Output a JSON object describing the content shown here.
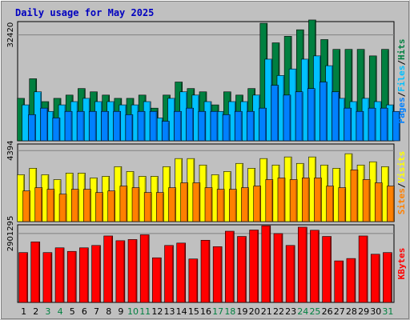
{
  "chart_data": {
    "type": "bar",
    "title": "Daily usage for May 2025",
    "categories": [
      "1",
      "2",
      "3",
      "4",
      "5",
      "6",
      "7",
      "8",
      "9",
      "10",
      "11",
      "12",
      "13",
      "14",
      "15",
      "16",
      "17",
      "18",
      "19",
      "20",
      "21",
      "22",
      "23",
      "24",
      "25",
      "26",
      "27",
      "28",
      "29",
      "30",
      "31"
    ],
    "weekend_days": [
      3,
      4,
      10,
      11,
      17,
      18,
      24,
      25,
      31
    ],
    "panels": [
      {
        "id": "hits-files-pages",
        "y_tick": "32420",
        "ylim": [
          0,
          36500
        ],
        "right_label": [
          "Pages",
          "Files",
          "Hits"
        ],
        "series": [
          {
            "name": "Hits",
            "color": "#008040",
            "values": [
              13000,
              19000,
              12000,
              13000,
              14000,
              16000,
              15000,
              14000,
              13000,
              13000,
              14000,
              10000,
              14000,
              18000,
              16000,
              15000,
              11000,
              15000,
              14000,
              16000,
              36000,
              30000,
              32000,
              34000,
              37000,
              31000,
              28000,
              28000,
              28000,
              26000,
              28000
            ]
          },
          {
            "name": "Files",
            "color": "#00c0ff",
            "values": [
              11000,
              15000,
              9000,
              11000,
              12000,
              13000,
              12000,
              12000,
              11000,
              11000,
              12000,
              7000,
              13000,
              15000,
              14000,
              12000,
              9000,
              12000,
              12000,
              14000,
              25000,
              20000,
              22000,
              25000,
              26000,
              23000,
              13000,
              12000,
              13000,
              12000,
              11000
            ]
          },
          {
            "name": "Pages",
            "color": "#0080ff",
            "values": [
              8000,
              10000,
              7000,
              9000,
              9000,
              9000,
              9000,
              9000,
              8000,
              9000,
              9000,
              6000,
              9000,
              10000,
              9000,
              9000,
              8000,
              9000,
              9000,
              10000,
              17000,
              14000,
              15000,
              16000,
              18000,
              15000,
              10000,
              9000,
              10000,
              10000,
              9000
            ]
          }
        ]
      },
      {
        "id": "visits-sites",
        "y_tick": "4394",
        "ylim": [
          0,
          4800
        ],
        "right_label": [
          "Sites",
          "Visits"
        ],
        "series": [
          {
            "name": "Visits",
            "color": "#ffff00",
            "values": [
              2900,
              3300,
              2900,
              2600,
              3000,
              3000,
              2700,
              2800,
              3400,
              3100,
              2800,
              2800,
              3400,
              3900,
              3900,
              3500,
              2900,
              3100,
              3600,
              3300,
              3900,
              3500,
              4000,
              3600,
              4000,
              3500,
              3300,
              4200,
              3500,
              3700,
              3400
            ]
          },
          {
            "name": "Sites",
            "color": "#ff8000",
            "values": [
              1900,
              2100,
              2000,
              1700,
              2000,
              2000,
              1800,
              1900,
              2200,
              2100,
              1800,
              1800,
              2100,
              2400,
              2400,
              2100,
              2000,
              2000,
              2100,
              2200,
              2600,
              2700,
              2600,
              2700,
              2700,
              2200,
              2100,
              3200,
              2600,
              2400,
              2200
            ]
          }
        ]
      },
      {
        "id": "kbytes",
        "y_tick": "2901295",
        "ylim": [
          0,
          3270000
        ],
        "right_label": [
          "KBytes"
        ],
        "series": [
          {
            "name": "KBytes",
            "color": "#ff0000",
            "values": [
              2100000,
              2550000,
              2100000,
              2300000,
              2150000,
              2300000,
              2400000,
              2800000,
              2600000,
              2650000,
              2850000,
              1880000,
              2400000,
              2500000,
              1830000,
              2620000,
              2350000,
              3000000,
              2780000,
              3050000,
              3230000,
              2900000,
              2400000,
              3170000,
              3040000,
              2780000,
              1750000,
              1850000,
              2800000,
              2030000,
              2100000
            ]
          }
        ]
      }
    ]
  }
}
